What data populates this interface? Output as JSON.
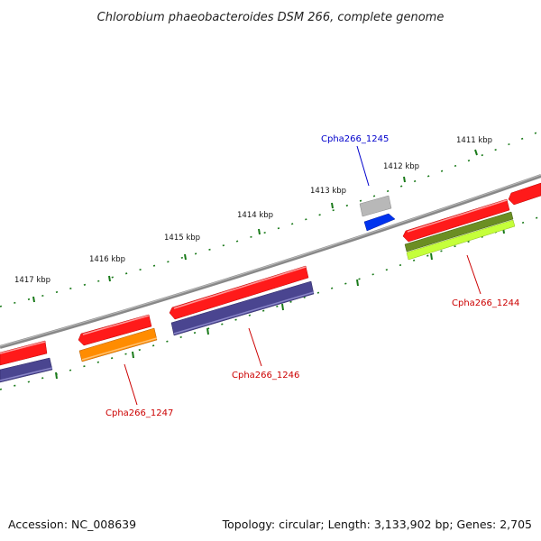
{
  "header": {
    "title": "Chlorobium phaeobacteroides DSM 266, complete genome"
  },
  "footer": {
    "accession": "Accession: NC_008639",
    "summary": "Topology: circular; Length: 3,133,902 bp; Genes: 2,705"
  },
  "ruler": {
    "unit": "kbp",
    "ticks": [
      {
        "label": "1411 kbp"
      },
      {
        "label": "1412 kbp"
      },
      {
        "label": "1413 kbp"
      },
      {
        "label": "1414 kbp"
      },
      {
        "label": "1415 kbp"
      },
      {
        "label": "1416 kbp"
      },
      {
        "label": "1417 kbp"
      }
    ]
  },
  "gene_labels": [
    {
      "text": "Cpha266_1244",
      "color": "#cc0000"
    },
    {
      "text": "Cpha266_1245",
      "color": "#0000cc"
    },
    {
      "text": "Cpha266_1246",
      "color": "#cc0000"
    },
    {
      "text": "Cpha266_1247",
      "color": "#cc0000"
    }
  ],
  "colors": {
    "cds": "#ff1a1a",
    "gene_label_red": "#cc0000",
    "gene_label_blue": "#0000cc",
    "backbone": "#888888",
    "ticks": "#1a7a1a",
    "blue_feature": "#0033ee",
    "gray_feature": "#b8b8b8",
    "purple_feature": "#4a4590",
    "orange_feature": "#ff8c00",
    "olive_feature": "#6b8e23",
    "lime_feature": "#c5ff3a"
  }
}
